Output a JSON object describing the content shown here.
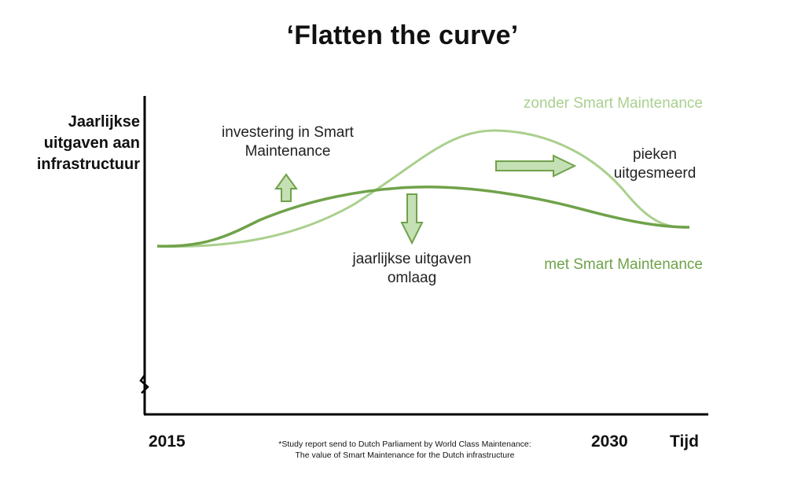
{
  "title": "‘Flatten the curve’",
  "y_axis_label": "Jaarlijkse\nuitgaven aan\ninfrastructuur",
  "annotations": {
    "investering": "investering in Smart\nMaintenance",
    "uitgaven_omlaag": "jaarlijkse uitgaven\nomlaag",
    "pieken": "pieken\nuitgesmeerd"
  },
  "series": {
    "zonder": {
      "name": "zonder Smart Maintenance",
      "color": "#a9d08e"
    },
    "met": {
      "name": "met Smart Maintenance",
      "color": "#70a24a"
    }
  },
  "x_axis": {
    "start_label": "2015",
    "end_label": "2030",
    "label": "Tijd"
  },
  "source_note": "*Study report send to  Dutch Parliament by World Class Maintenance:\nThe value of Smart Maintenance for the Dutch infrastructure",
  "arrows": {
    "up": "arrow-up-icon",
    "down": "arrow-down-icon",
    "right": "arrow-right-icon",
    "fill_color": "#c5e0b4",
    "stroke_color": "#70a24a"
  }
}
